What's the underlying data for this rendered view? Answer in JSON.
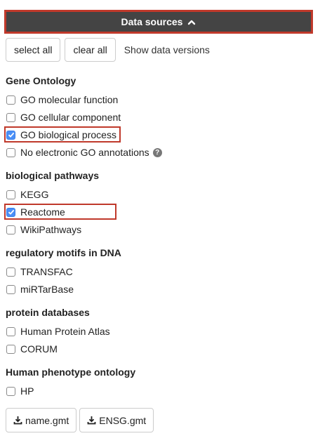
{
  "header": {
    "title": "Data sources"
  },
  "toolbar": {
    "select_all": "select all",
    "clear_all": "clear all",
    "show_versions": "Show data versions"
  },
  "sections": {
    "go": {
      "title": "Gene Ontology",
      "items": [
        {
          "label": "GO molecular function",
          "checked": false
        },
        {
          "label": "GO cellular component",
          "checked": false
        },
        {
          "label": "GO biological process",
          "checked": true
        },
        {
          "label": "No electronic GO annotations",
          "checked": false
        }
      ]
    },
    "pathways": {
      "title": "biological pathways",
      "items": [
        {
          "label": "KEGG",
          "checked": false
        },
        {
          "label": "Reactome",
          "checked": true
        },
        {
          "label": "WikiPathways",
          "checked": false
        }
      ]
    },
    "motifs": {
      "title": "regulatory motifs in DNA",
      "items": [
        {
          "label": "TRANSFAC",
          "checked": false
        },
        {
          "label": "miRTarBase",
          "checked": false
        }
      ]
    },
    "protein": {
      "title": "protein databases",
      "items": [
        {
          "label": "Human Protein Atlas",
          "checked": false
        },
        {
          "label": "CORUM",
          "checked": false
        }
      ]
    },
    "phenotype": {
      "title": "Human phenotype ontology",
      "items": [
        {
          "label": "HP",
          "checked": false
        }
      ]
    }
  },
  "downloads": {
    "name_gmt": "name.gmt",
    "ensg_gmt": "ENSG.gmt"
  },
  "icons": {
    "header_chevron": "chevron-up-icon",
    "help": "question-circle-icon",
    "download": "download-icon"
  },
  "colors": {
    "header_bg": "#444444",
    "highlight": "#c0392b",
    "checkbox_checked": "#4a8ff7"
  }
}
